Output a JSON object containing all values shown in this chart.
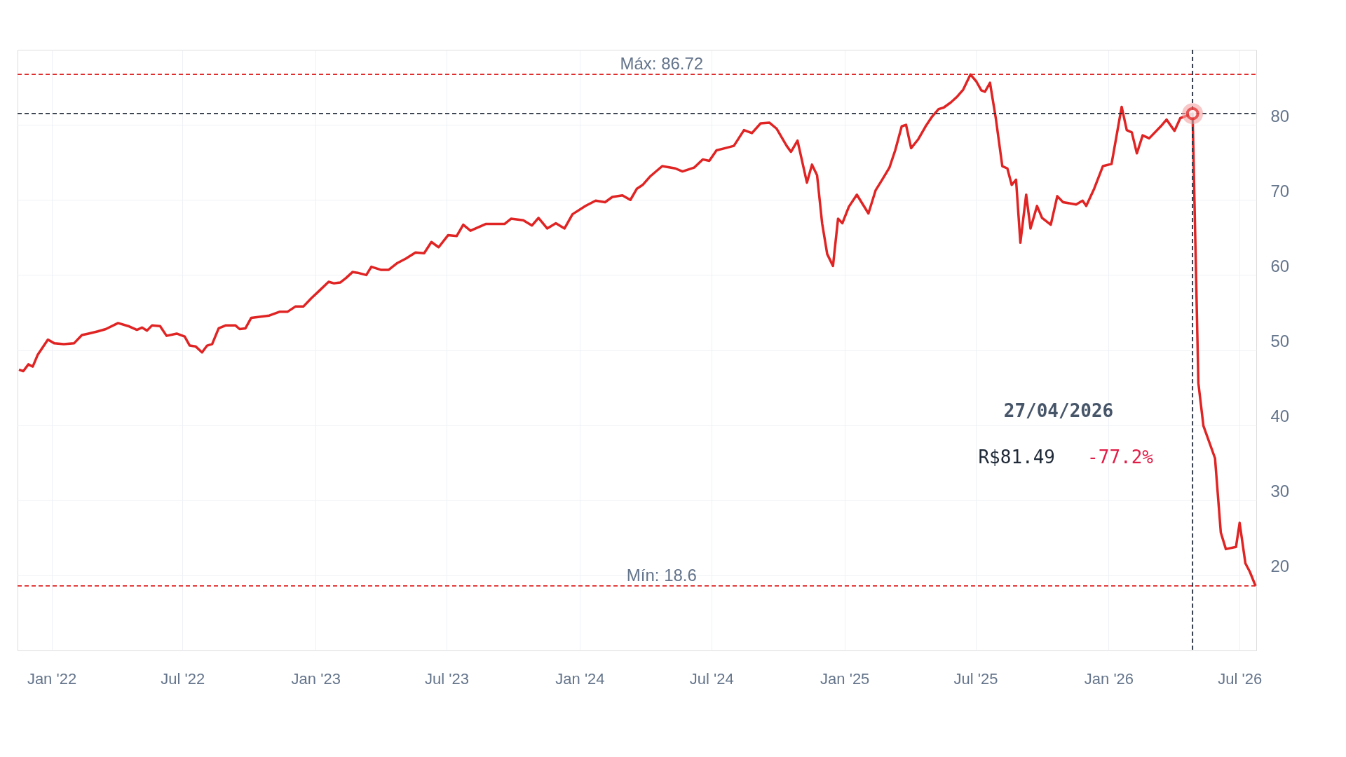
{
  "chart_data": {
    "type": "line",
    "x": [
      "2021-11-17",
      "2021-11-23",
      "2021-11-30",
      "2021-12-06",
      "2021-12-13",
      "2021-12-20",
      "2021-12-27",
      "2022-01-05",
      "2022-01-18",
      "2022-02-01",
      "2022-02-12",
      "2022-02-21",
      "2022-03-06",
      "2022-03-17",
      "2022-04-03",
      "2022-04-17",
      "2022-04-29",
      "2022-05-06",
      "2022-05-13",
      "2022-05-20",
      "2022-05-31",
      "2022-06-09",
      "2022-06-23",
      "2022-07-04",
      "2022-07-11",
      "2022-07-19",
      "2022-07-28",
      "2022-08-04",
      "2022-08-11",
      "2022-08-20",
      "2022-08-30",
      "2022-09-12",
      "2022-09-18",
      "2022-09-26",
      "2022-10-04",
      "2022-10-29",
      "2022-11-12",
      "2022-11-23",
      "2022-12-04",
      "2022-12-15",
      "2022-12-26",
      "2023-01-06",
      "2023-01-19",
      "2023-01-26",
      "2023-02-04",
      "2023-02-12",
      "2023-02-21",
      "2023-02-28",
      "2023-03-12",
      "2023-03-19",
      "2023-04-01",
      "2023-04-12",
      "2023-04-24",
      "2023-05-06",
      "2023-05-19",
      "2023-05-31",
      "2023-06-10",
      "2023-06-20",
      "2023-07-03",
      "2023-07-15",
      "2023-07-24",
      "2023-08-03",
      "2023-08-24",
      "2023-09-19",
      "2023-09-28",
      "2023-10-15",
      "2023-10-27",
      "2023-11-05",
      "2023-11-17",
      "2023-11-29",
      "2023-12-11",
      "2023-12-22",
      "2024-01-09",
      "2024-01-23",
      "2024-02-05",
      "2024-02-15",
      "2024-02-29",
      "2024-03-11",
      "2024-03-20",
      "2024-03-28",
      "2024-04-07",
      "2024-04-24",
      "2024-05-12",
      "2024-05-22",
      "2024-06-07",
      "2024-06-19",
      "2024-06-28",
      "2024-07-08",
      "2024-07-20",
      "2024-08-01",
      "2024-08-15",
      "2024-08-26",
      "2024-09-07",
      "2024-09-19",
      "2024-09-29",
      "2024-10-13",
      "2024-10-19",
      "2024-10-28",
      "2024-11-10",
      "2024-11-17",
      "2024-11-24",
      "2024-12-01",
      "2024-12-08",
      "2024-12-16",
      "2024-12-23",
      "2024-12-29",
      "2025-01-07",
      "2025-01-18",
      "2025-01-25",
      "2025-02-03",
      "2025-02-13",
      "2025-02-22",
      "2025-03-04",
      "2025-03-12",
      "2025-03-21",
      "2025-03-27",
      "2025-04-03",
      "2025-04-13",
      "2025-04-23",
      "2025-05-02",
      "2025-05-11",
      "2025-05-18",
      "2025-05-28",
      "2025-06-06",
      "2025-06-14",
      "2025-06-24",
      "2025-07-02",
      "2025-07-09",
      "2025-07-14",
      "2025-07-21",
      "2025-07-29",
      "2025-08-07",
      "2025-08-14",
      "2025-08-20",
      "2025-08-26",
      "2025-09-01",
      "2025-09-09",
      "2025-09-15",
      "2025-09-24",
      "2025-10-01",
      "2025-10-13",
      "2025-10-22",
      "2025-10-30",
      "2025-11-17",
      "2025-11-26",
      "2025-12-01",
      "2025-12-12",
      "2025-12-24",
      "2026-01-05",
      "2026-01-19",
      "2026-01-26",
      "2026-02-02",
      "2026-02-09",
      "2026-02-17",
      "2026-02-26",
      "2026-03-14",
      "2026-03-22",
      "2026-04-02",
      "2026-04-10",
      "2026-04-27",
      "2026-05-05",
      "2026-05-12",
      "2026-05-28",
      "2026-06-05",
      "2026-06-12",
      "2026-06-26",
      "2026-07-01",
      "2026-07-09",
      "2026-07-15",
      "2026-07-23"
    ],
    "series": [
      {
        "color": "#e02424",
        "values": [
          47.4,
          47.2,
          48.1,
          47.8,
          49.4,
          50.4,
          51.4,
          50.9,
          50.8,
          50.9,
          52.0,
          52.2,
          52.5,
          52.8,
          53.6,
          53.2,
          52.7,
          53.0,
          52.6,
          53.3,
          53.2,
          51.9,
          52.2,
          51.8,
          50.6,
          50.5,
          49.7,
          50.6,
          50.8,
          52.9,
          53.3,
          53.3,
          52.8,
          52.9,
          54.3,
          54.6,
          55.1,
          55.1,
          55.8,
          55.8,
          56.9,
          57.9,
          59.1,
          58.9,
          59.0,
          59.6,
          60.4,
          60.3,
          60.0,
          61.1,
          60.7,
          60.7,
          61.6,
          62.2,
          63.0,
          62.9,
          64.4,
          63.7,
          65.3,
          65.2,
          66.7,
          65.9,
          66.8,
          66.8,
          67.5,
          67.3,
          66.6,
          67.6,
          66.2,
          66.9,
          66.2,
          68.1,
          69.2,
          69.9,
          69.7,
          70.4,
          70.6,
          70.0,
          71.5,
          72.0,
          73.1,
          74.5,
          74.2,
          73.8,
          74.3,
          75.4,
          75.2,
          76.6,
          76.9,
          77.2,
          79.3,
          78.9,
          80.2,
          80.3,
          79.5,
          77.2,
          76.4,
          77.9,
          72.3,
          74.7,
          73.3,
          66.9,
          62.8,
          61.2,
          67.5,
          66.9,
          69.1,
          70.7,
          69.6,
          68.2,
          71.3,
          72.7,
          74.3,
          76.6,
          79.8,
          80.0,
          76.9,
          78.1,
          79.8,
          81.1,
          82.1,
          82.3,
          83.0,
          83.8,
          84.7,
          86.7,
          85.8,
          84.6,
          84.4,
          85.6,
          80.9,
          74.5,
          74.2,
          72.0,
          72.7,
          64.3,
          70.7,
          66.2,
          69.2,
          67.6,
          66.7,
          70.5,
          69.7,
          69.4,
          69.9,
          69.2,
          71.5,
          74.5,
          74.8,
          82.4,
          79.3,
          79.0,
          76.2,
          78.6,
          78.2,
          79.8,
          80.7,
          79.2,
          80.9,
          81.5,
          45.6,
          39.9,
          35.6,
          25.7,
          23.5,
          23.8,
          27.0,
          21.6,
          20.5,
          18.6
        ]
      }
    ],
    "xlim": [
      "2021-11-15",
      "2026-07-24"
    ],
    "xticks": [
      {
        "value": "2022-01-01",
        "label": "Jan '22"
      },
      {
        "value": "2022-07-01",
        "label": "Jul '22"
      },
      {
        "value": "2023-01-01",
        "label": "Jan '23"
      },
      {
        "value": "2023-07-01",
        "label": "Jul '23"
      },
      {
        "value": "2024-01-01",
        "label": "Jan '24"
      },
      {
        "value": "2024-07-01",
        "label": "Jul '24"
      },
      {
        "value": "2025-01-01",
        "label": "Jan '25"
      },
      {
        "value": "2025-07-01",
        "label": "Jul '25"
      },
      {
        "value": "2026-01-01",
        "label": "Jan '26"
      },
      {
        "value": "2026-07-01",
        "label": "Jul '26"
      }
    ],
    "ylim": [
      10,
      90
    ],
    "yticks": [
      20,
      30,
      40,
      50,
      60,
      70,
      80
    ],
    "grid": true,
    "marker": "none",
    "line_style": "solid",
    "ref_lines": [
      {
        "axis": "y",
        "value": 86.72,
        "label": "Máx: 86.72",
        "color": "#e02424",
        "line_style": "dashed"
      },
      {
        "axis": "y",
        "value": 18.6,
        "label": "Mín: 18.6",
        "color": "#e02424",
        "line_style": "dashed"
      },
      {
        "axis": "y",
        "value": 81.49,
        "label": null,
        "color": "#1f2937",
        "line_style": "dashed"
      },
      {
        "axis": "x",
        "value": "2026-04-27",
        "label": null,
        "color": "#1f2937",
        "line_style": "dashed"
      }
    ],
    "annotations": [
      "27/04/2026",
      "R$81.49",
      "-77.2%"
    ]
  }
}
